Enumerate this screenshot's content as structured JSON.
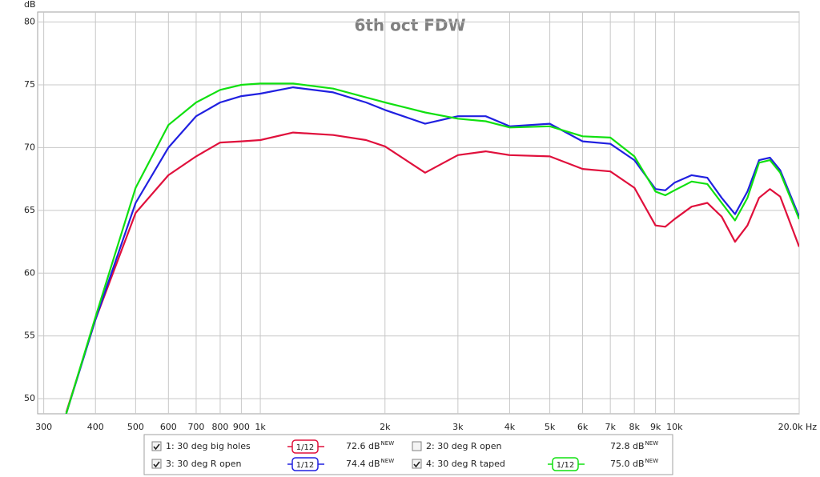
{
  "chart_data": {
    "type": "line",
    "title": "6th oct FDW",
    "y_unit": "dB",
    "xscale": "log",
    "grid": true,
    "x": [
      340,
      400,
      500,
      600,
      700,
      800,
      900,
      1000,
      1200,
      1500,
      1800,
      2000,
      2500,
      3000,
      3500,
      4000,
      5000,
      6000,
      7000,
      8000,
      9000,
      9500,
      10000,
      11000,
      12000,
      13000,
      14000,
      15000,
      16000,
      17000,
      18000,
      20000
    ],
    "xlim": [
      290,
      20000
    ],
    "ylim": [
      48.8,
      80.8
    ],
    "xticks": [
      300,
      400,
      500,
      600,
      700,
      800,
      900,
      {
        "value": 1000,
        "label": "1k"
      },
      {
        "value": 2000,
        "label": "2k"
      },
      {
        "value": 3000,
        "label": "3k"
      },
      {
        "value": 4000,
        "label": "4k"
      },
      {
        "value": 5000,
        "label": "5k"
      },
      {
        "value": 6000,
        "label": "6k"
      },
      {
        "value": 7000,
        "label": "7k"
      },
      {
        "value": 8000,
        "label": "8k"
      },
      {
        "value": 9000,
        "label": "9k"
      },
      {
        "value": 10000,
        "label": "10k"
      },
      {
        "value": 20000,
        "label": "20.0k Hz"
      }
    ],
    "yticks": [
      50,
      55,
      60,
      65,
      70,
      75,
      80
    ],
    "series": [
      {
        "name": "1: 30 deg big holes",
        "color": "#e0103c",
        "checked": true,
        "smoothing": "1/12",
        "level": {
          "value": 72.6,
          "label": "72.6 dB"
        },
        "level_note": "NEW",
        "values": [
          48.9,
          56.3,
          64.8,
          67.8,
          69.3,
          70.4,
          70.5,
          70.6,
          71.2,
          71.0,
          70.6,
          70.1,
          68.0,
          69.4,
          69.7,
          69.4,
          69.3,
          68.3,
          68.1,
          66.8,
          63.8,
          63.7,
          64.3,
          65.3,
          65.6,
          64.5,
          62.5,
          63.8,
          66.0,
          66.7,
          66.1,
          62.1
        ]
      },
      {
        "name": "2: 30 deg R open",
        "color": "#2020e0",
        "checked": false,
        "level": {
          "value": 72.8,
          "label": "72.8 dB"
        },
        "level_note": "NEW"
      },
      {
        "name": "3: 30 deg R open",
        "color": "#2020e0",
        "checked": true,
        "smoothing": "1/12",
        "level": {
          "value": 74.4,
          "label": "74.4 dB"
        },
        "level_note": "NEW",
        "values": [
          48.8,
          56.3,
          65.6,
          70.0,
          72.5,
          73.6,
          74.1,
          74.3,
          74.8,
          74.4,
          73.6,
          73.0,
          71.9,
          72.5,
          72.5,
          71.7,
          71.9,
          70.5,
          70.3,
          69.0,
          66.7,
          66.6,
          67.2,
          67.8,
          67.6,
          66.0,
          64.7,
          66.5,
          69.0,
          69.2,
          68.2,
          64.5
        ]
      },
      {
        "name": "4: 30 deg R taped",
        "color": "#10e010",
        "checked": true,
        "smoothing": "1/12",
        "level": {
          "value": 75.0,
          "label": "75.0 dB"
        },
        "level_note": "NEW",
        "values": [
          48.8,
          56.5,
          66.8,
          71.8,
          73.6,
          74.6,
          75.0,
          75.1,
          75.1,
          74.7,
          74.0,
          73.6,
          72.8,
          72.3,
          72.1,
          71.6,
          71.7,
          70.9,
          70.8,
          69.3,
          66.5,
          66.2,
          66.6,
          67.3,
          67.1,
          65.6,
          64.2,
          66.0,
          68.8,
          69.0,
          68.0,
          64.3
        ]
      }
    ]
  }
}
